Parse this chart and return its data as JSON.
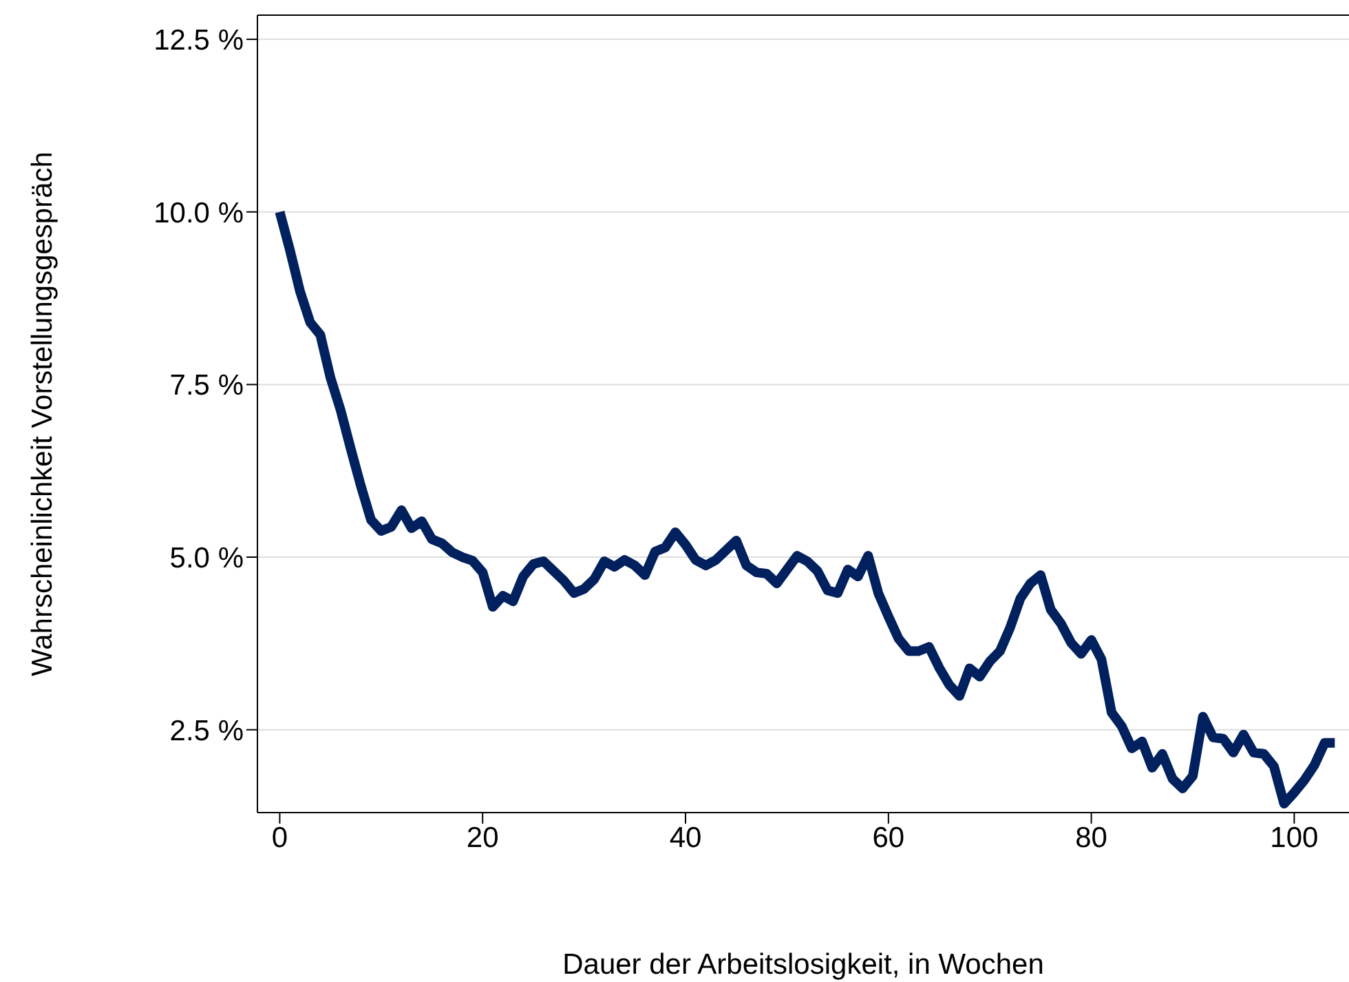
{
  "chart_data": {
    "type": "line",
    "xlabel": "Dauer der Arbeitslosigkeit, in Wochen",
    "ylabel": "Wahrscheinlichkeit Vorstellungsgespräch",
    "x": [
      0,
      1,
      2,
      3,
      4,
      5,
      6,
      7,
      8,
      9,
      10,
      11,
      12,
      13,
      14,
      15,
      16,
      17,
      18,
      19,
      20,
      21,
      22,
      23,
      24,
      25,
      26,
      27,
      28,
      29,
      30,
      31,
      32,
      33,
      34,
      35,
      36,
      37,
      38,
      39,
      40,
      41,
      42,
      43,
      44,
      45,
      46,
      47,
      48,
      49,
      50,
      51,
      52,
      53,
      54,
      55,
      56,
      57,
      58,
      59,
      60,
      61,
      62,
      63,
      64,
      65,
      66,
      67,
      68,
      69,
      70,
      71,
      72,
      73,
      74,
      75,
      76,
      77,
      78,
      79,
      80,
      81,
      82,
      83,
      84,
      85,
      86,
      87,
      88,
      89,
      90,
      91,
      92,
      93,
      94,
      95,
      96,
      97,
      98,
      99,
      100,
      101,
      102,
      103,
      104
    ],
    "series": [
      {
        "color": "#00215e",
        "values": [
          10.0,
          9.45,
          8.85,
          8.4,
          8.22,
          7.6,
          7.13,
          6.57,
          6.03,
          5.54,
          5.38,
          5.44,
          5.68,
          5.42,
          5.52,
          5.26,
          5.2,
          5.07,
          5.0,
          4.95,
          4.78,
          4.28,
          4.44,
          4.36,
          4.72,
          4.9,
          4.94,
          4.8,
          4.66,
          4.48,
          4.54,
          4.68,
          4.94,
          4.86,
          4.96,
          4.88,
          4.74,
          5.08,
          5.14,
          5.36,
          5.18,
          4.96,
          4.88,
          4.96,
          5.1,
          5.24,
          4.88,
          4.78,
          4.76,
          4.62,
          4.82,
          5.02,
          4.94,
          4.8,
          4.52,
          4.48,
          4.82,
          4.72,
          5.02,
          4.48,
          4.14,
          3.82,
          3.64,
          3.64,
          3.7,
          3.4,
          3.15,
          2.99,
          3.39,
          3.27,
          3.49,
          3.64,
          3.98,
          4.4,
          4.62,
          4.74,
          4.24,
          4.04,
          3.76,
          3.6,
          3.8,
          3.52,
          2.75,
          2.55,
          2.23,
          2.33,
          1.95,
          2.15,
          1.79,
          1.65,
          1.83,
          2.69,
          2.39,
          2.37,
          2.17,
          2.43,
          2.17,
          2.15,
          1.97,
          1.43,
          1.59,
          1.77,
          1.99,
          2.31,
          2.31
        ]
      }
    ],
    "xlim": [
      -2.2,
      105.4
    ],
    "xticks": [
      0,
      20,
      40,
      60,
      80,
      100
    ],
    "ylim": [
      1.3,
      12.85
    ],
    "yticks": [
      {
        "value": 2.5,
        "label": "2.5 %"
      },
      {
        "value": 5,
        "label": "5.0 %"
      },
      {
        "value": 7.5,
        "label": "7.5 %"
      },
      {
        "value": 10,
        "label": "10.0 %"
      },
      {
        "value": 12.5,
        "label": "12.5 %"
      }
    ],
    "grid": "y",
    "legend": false,
    "marker": "none",
    "line_style": "solid"
  }
}
